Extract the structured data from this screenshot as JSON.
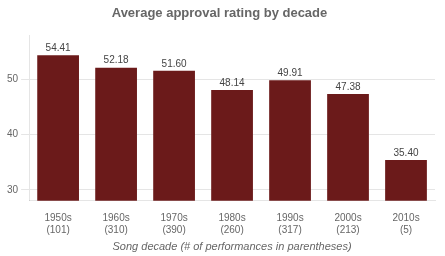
{
  "chart_data": {
    "type": "bar",
    "title": "Average approval rating by decade",
    "categories": [
      "1950s\n(101)",
      "1960s\n(310)",
      "1970s\n(390)",
      "1980s\n(260)",
      "1990s\n(317)",
      "2000s\n(213)",
      "2010s\n(5)"
    ],
    "values": [
      54.41,
      52.18,
      51.6,
      48.14,
      49.91,
      47.38,
      35.4
    ],
    "value_labels": [
      "54.41",
      "52.18",
      "51.60",
      "48.14",
      "49.91",
      "47.38",
      "35.40"
    ],
    "data_labels": true,
    "color": "#6B1A1A",
    "xlabel": "Song decade (# of performances in parentheses)",
    "ylim": [
      28,
      58
    ],
    "yticks": [
      30,
      40,
      50
    ],
    "grid": true
  }
}
